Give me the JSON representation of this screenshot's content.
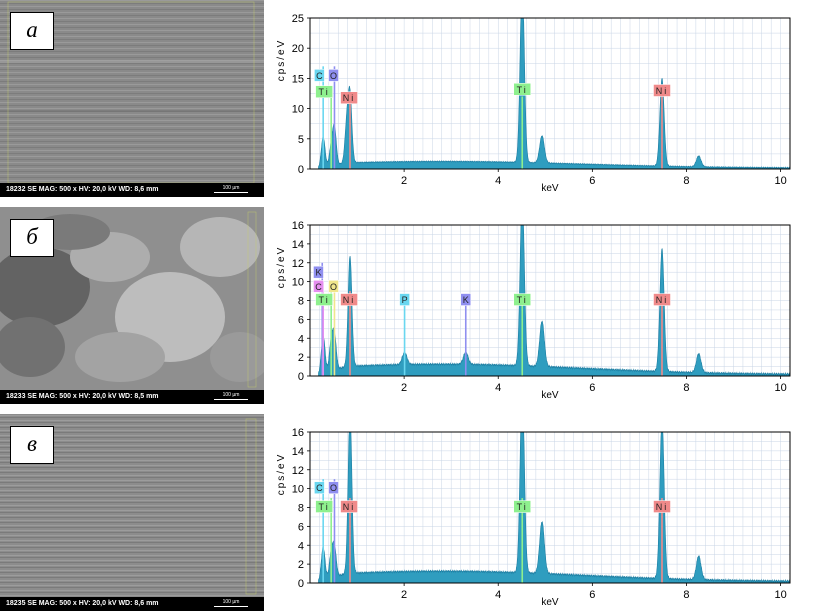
{
  "colors": {
    "spectrum_fill": "#2f9dbf",
    "grid": "#c9d5e6",
    "tag_C": "#6ad7f0",
    "tag_O": "#8f8ff0",
    "tag_Ti": "#8ef08e",
    "tag_Ni": "#f08a8a",
    "tag_K": "#8f8ff0",
    "tag_P": "#6ad7f0",
    "tag_O_b": "#f0e68c",
    "tag_C_b": "#e68ef0"
  },
  "panels": [
    {
      "label": "а",
      "sem_info": "18232  SE  MAG: 500 x  HV: 20,0 kV  WD: 8,6 mm",
      "scale_label": "100 µm",
      "chart_data": {
        "type": "line",
        "ylabel": "cps/eV",
        "xlabel": "keV",
        "xlim": [
          0,
          10.2
        ],
        "ylim": [
          0,
          25
        ],
        "x_ticks": [
          2,
          4,
          6,
          8,
          10
        ],
        "y_ticks": [
          0,
          5,
          10,
          15,
          20,
          25
        ],
        "grid": true,
        "peaks": [
          {
            "x": 0.28,
            "y": 5,
            "w": 0.04
          },
          {
            "x": 0.45,
            "y": 3,
            "w": 0.04
          },
          {
            "x": 0.52,
            "y": 6,
            "w": 0.04
          },
          {
            "x": 0.78,
            "y": 6,
            "w": 0.04
          },
          {
            "x": 0.85,
            "y": 11,
            "w": 0.04
          },
          {
            "x": 4.51,
            "y": 30,
            "w": 0.045
          },
          {
            "x": 4.93,
            "y": 4.5,
            "w": 0.05
          },
          {
            "x": 7.48,
            "y": 14.5,
            "w": 0.045
          },
          {
            "x": 8.26,
            "y": 1.8,
            "w": 0.05
          }
        ],
        "lines": [
          {
            "x": 0.28,
            "h": 17,
            "color": "#6ad7f0"
          },
          {
            "x": 0.45,
            "h": 12,
            "color": "#8ef08e"
          },
          {
            "x": 0.52,
            "h": 17,
            "color": "#8f8ff0"
          },
          {
            "x": 0.85,
            "h": 11,
            "color": "#f08a8a"
          },
          {
            "x": 4.51,
            "h": 12,
            "color": "#8ef08e"
          },
          {
            "x": 7.48,
            "h": 12,
            "color": "#f08a8a"
          }
        ],
        "tags": [
          {
            "text": "C",
            "x": 0.2,
            "y": 15.5,
            "color": "#6ad7f0"
          },
          {
            "text": "O",
            "x": 0.5,
            "y": 15.5,
            "color": "#8f8ff0"
          },
          {
            "text": "Ti",
            "x": 0.3,
            "y": 12.8,
            "color": "#8ef08e"
          },
          {
            "text": "Ni",
            "x": 0.83,
            "y": 11.8,
            "color": "#f08a8a"
          },
          {
            "text": "Ti",
            "x": 4.51,
            "y": 13.2,
            "color": "#8ef08e"
          },
          {
            "text": "Ni",
            "x": 7.48,
            "y": 13.0,
            "color": "#f08a8a"
          }
        ]
      }
    },
    {
      "label": "б",
      "sem_info": "18233  SE  MAG: 500 x  HV: 20,0 kV  WD: 8,5 mm",
      "scale_label": "100 µm",
      "chart_data": {
        "type": "line",
        "ylabel": "cps/eV",
        "xlabel": "keV",
        "xlim": [
          0,
          10.2
        ],
        "ylim": [
          0,
          16
        ],
        "x_ticks": [
          2,
          4,
          6,
          8,
          10
        ],
        "y_ticks": [
          0,
          2,
          4,
          6,
          8,
          10,
          12,
          14,
          16
        ],
        "grid": true,
        "peaks": [
          {
            "x": 0.28,
            "y": 4,
            "w": 0.04
          },
          {
            "x": 0.45,
            "y": 3,
            "w": 0.04
          },
          {
            "x": 0.52,
            "y": 3.5,
            "w": 0.04
          },
          {
            "x": 0.85,
            "y": 11.7,
            "w": 0.04
          },
          {
            "x": 2.01,
            "y": 1.3,
            "w": 0.05
          },
          {
            "x": 3.31,
            "y": 1.3,
            "w": 0.05
          },
          {
            "x": 4.51,
            "y": 18,
            "w": 0.045
          },
          {
            "x": 4.93,
            "y": 4.8,
            "w": 0.05
          },
          {
            "x": 7.48,
            "y": 13,
            "w": 0.045
          },
          {
            "x": 8.26,
            "y": 2,
            "w": 0.05
          }
        ],
        "lines": [
          {
            "x": 0.26,
            "h": 12,
            "color": "#8f8ff0"
          },
          {
            "x": 0.28,
            "h": 10,
            "color": "#e68ef0"
          },
          {
            "x": 0.45,
            "h": 9,
            "color": "#8ef08e"
          },
          {
            "x": 0.52,
            "h": 10,
            "color": "#f0e68c"
          },
          {
            "x": 0.85,
            "h": 9,
            "color": "#f08a8a"
          },
          {
            "x": 2.01,
            "h": 8,
            "color": "#6ad7f0"
          },
          {
            "x": 3.31,
            "h": 8,
            "color": "#8f8ff0"
          },
          {
            "x": 4.51,
            "h": 8,
            "color": "#8ef08e"
          },
          {
            "x": 7.48,
            "h": 8,
            "color": "#f08a8a"
          }
        ],
        "tags": [
          {
            "text": "K",
            "x": 0.18,
            "y": 11.0,
            "color": "#8f8ff0"
          },
          {
            "text": "C",
            "x": 0.18,
            "y": 9.5,
            "color": "#e68ef0"
          },
          {
            "text": "O",
            "x": 0.5,
            "y": 9.5,
            "color": "#f0e68c"
          },
          {
            "text": "Ti",
            "x": 0.3,
            "y": 8.1,
            "color": "#8ef08e"
          },
          {
            "text": "Ni",
            "x": 0.83,
            "y": 8.1,
            "color": "#f08a8a"
          },
          {
            "text": "P",
            "x": 2.01,
            "y": 8.1,
            "color": "#6ad7f0"
          },
          {
            "text": "K",
            "x": 3.31,
            "y": 8.1,
            "color": "#8f8ff0"
          },
          {
            "text": "Ti",
            "x": 4.51,
            "y": 8.1,
            "color": "#8ef08e"
          },
          {
            "text": "Ni",
            "x": 7.48,
            "y": 8.1,
            "color": "#f08a8a"
          }
        ]
      }
    },
    {
      "label": "в",
      "sem_info": "18235  SE  MAG: 500 x  HV: 20,0 kV  WD: 8,6 mm",
      "scale_label": "100 µm",
      "chart_data": {
        "type": "line",
        "ylabel": "cps/eV",
        "xlabel": "keV",
        "xlim": [
          0,
          10.2
        ],
        "ylim": [
          0,
          16
        ],
        "x_ticks": [
          2,
          4,
          6,
          8,
          10
        ],
        "y_ticks": [
          0,
          2,
          4,
          6,
          8,
          10,
          12,
          14,
          16
        ],
        "grid": true,
        "peaks": [
          {
            "x": 0.28,
            "y": 3.5,
            "w": 0.04
          },
          {
            "x": 0.45,
            "y": 2.5,
            "w": 0.04
          },
          {
            "x": 0.52,
            "y": 3,
            "w": 0.04
          },
          {
            "x": 0.85,
            "y": 17,
            "w": 0.04
          },
          {
            "x": 4.51,
            "y": 20,
            "w": 0.045
          },
          {
            "x": 4.93,
            "y": 5.5,
            "w": 0.05
          },
          {
            "x": 7.48,
            "y": 17,
            "w": 0.045
          },
          {
            "x": 8.26,
            "y": 2.5,
            "w": 0.05
          }
        ],
        "lines": [
          {
            "x": 0.28,
            "h": 11,
            "color": "#6ad7f0"
          },
          {
            "x": 0.45,
            "h": 9,
            "color": "#8ef08e"
          },
          {
            "x": 0.52,
            "h": 11,
            "color": "#8f8ff0"
          },
          {
            "x": 0.85,
            "h": 9,
            "color": "#f08a8a"
          },
          {
            "x": 4.51,
            "h": 9,
            "color": "#8ef08e"
          },
          {
            "x": 7.48,
            "h": 9,
            "color": "#f08a8a"
          }
        ],
        "tags": [
          {
            "text": "C",
            "x": 0.2,
            "y": 10.1,
            "color": "#6ad7f0"
          },
          {
            "text": "O",
            "x": 0.5,
            "y": 10.1,
            "color": "#8f8ff0"
          },
          {
            "text": "Ti",
            "x": 0.3,
            "y": 8.1,
            "color": "#8ef08e"
          },
          {
            "text": "Ni",
            "x": 0.83,
            "y": 8.1,
            "color": "#f08a8a"
          },
          {
            "text": "Ti",
            "x": 4.51,
            "y": 8.1,
            "color": "#8ef08e"
          },
          {
            "text": "Ni",
            "x": 7.48,
            "y": 8.1,
            "color": "#f08a8a"
          }
        ]
      }
    }
  ]
}
